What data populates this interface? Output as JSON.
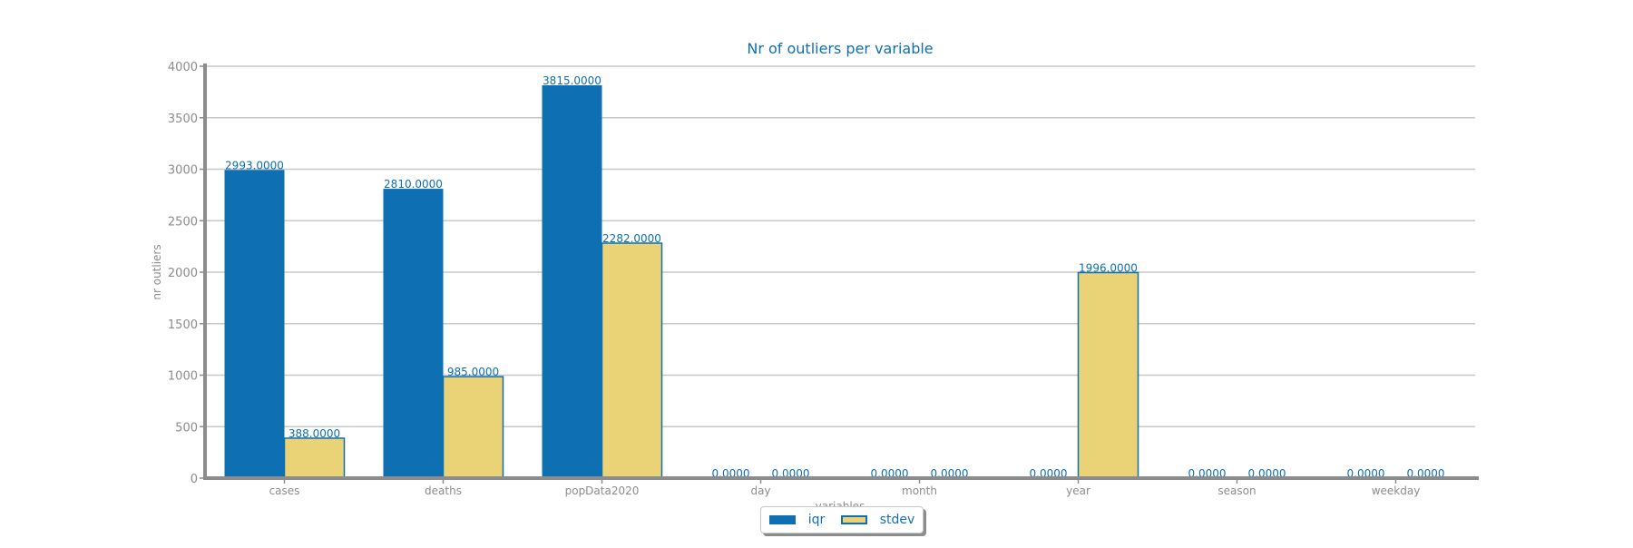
{
  "chart_data": {
    "type": "bar",
    "title": "Nr of outliers per variable",
    "xlabel": "variables",
    "ylabel": "nr outliers",
    "categories": [
      "cases",
      "deaths",
      "popData2020",
      "day",
      "month",
      "year",
      "season",
      "weekday"
    ],
    "series": [
      {
        "name": "iqr",
        "values": [
          2993,
          2810,
          3815,
          0,
          0,
          0,
          0,
          0
        ]
      },
      {
        "name": "stdev",
        "values": [
          388,
          985,
          2282,
          0,
          0,
          1996,
          0,
          0
        ]
      }
    ],
    "data_labels": {
      "iqr": [
        "2993.0000",
        "2810.0000",
        "3815.0000",
        "0.0000",
        "0.0000",
        "0.0000",
        "0.0000",
        "0.0000"
      ],
      "stdev": [
        "388.0000",
        "985.0000",
        "2282.0000",
        "0.0000",
        "0.0000",
        "1996.0000",
        "0.0000",
        "0.0000"
      ]
    },
    "ylim": [
      0,
      4000
    ],
    "yticks": [
      0,
      500,
      1000,
      1500,
      2000,
      2500,
      3000,
      3500,
      4000
    ],
    "grid": true,
    "legend_position": "bottom-center",
    "colors": {
      "iqr": "#0e6fb3",
      "stdev": "#ead376",
      "stdev_edge": "#0e6fb3",
      "text": "#0e6fb3",
      "axis": "#8c8c8c",
      "grid": "#c8c8c8",
      "tick_text": "#8c8c8c"
    }
  }
}
